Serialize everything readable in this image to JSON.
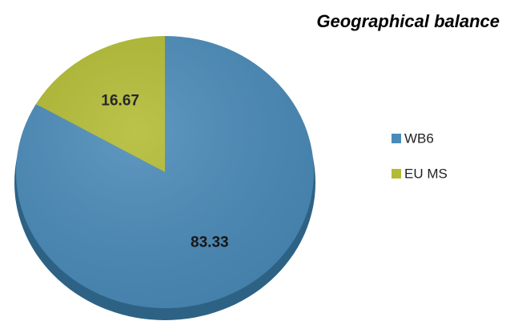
{
  "chart_data": {
    "type": "pie",
    "title": "Geographical balance",
    "categories": [
      "WB6",
      "EU MS"
    ],
    "values": [
      83.33,
      16.67
    ],
    "colors": [
      "#4a8bb9",
      "#b2bb33"
    ],
    "legend": "right"
  }
}
